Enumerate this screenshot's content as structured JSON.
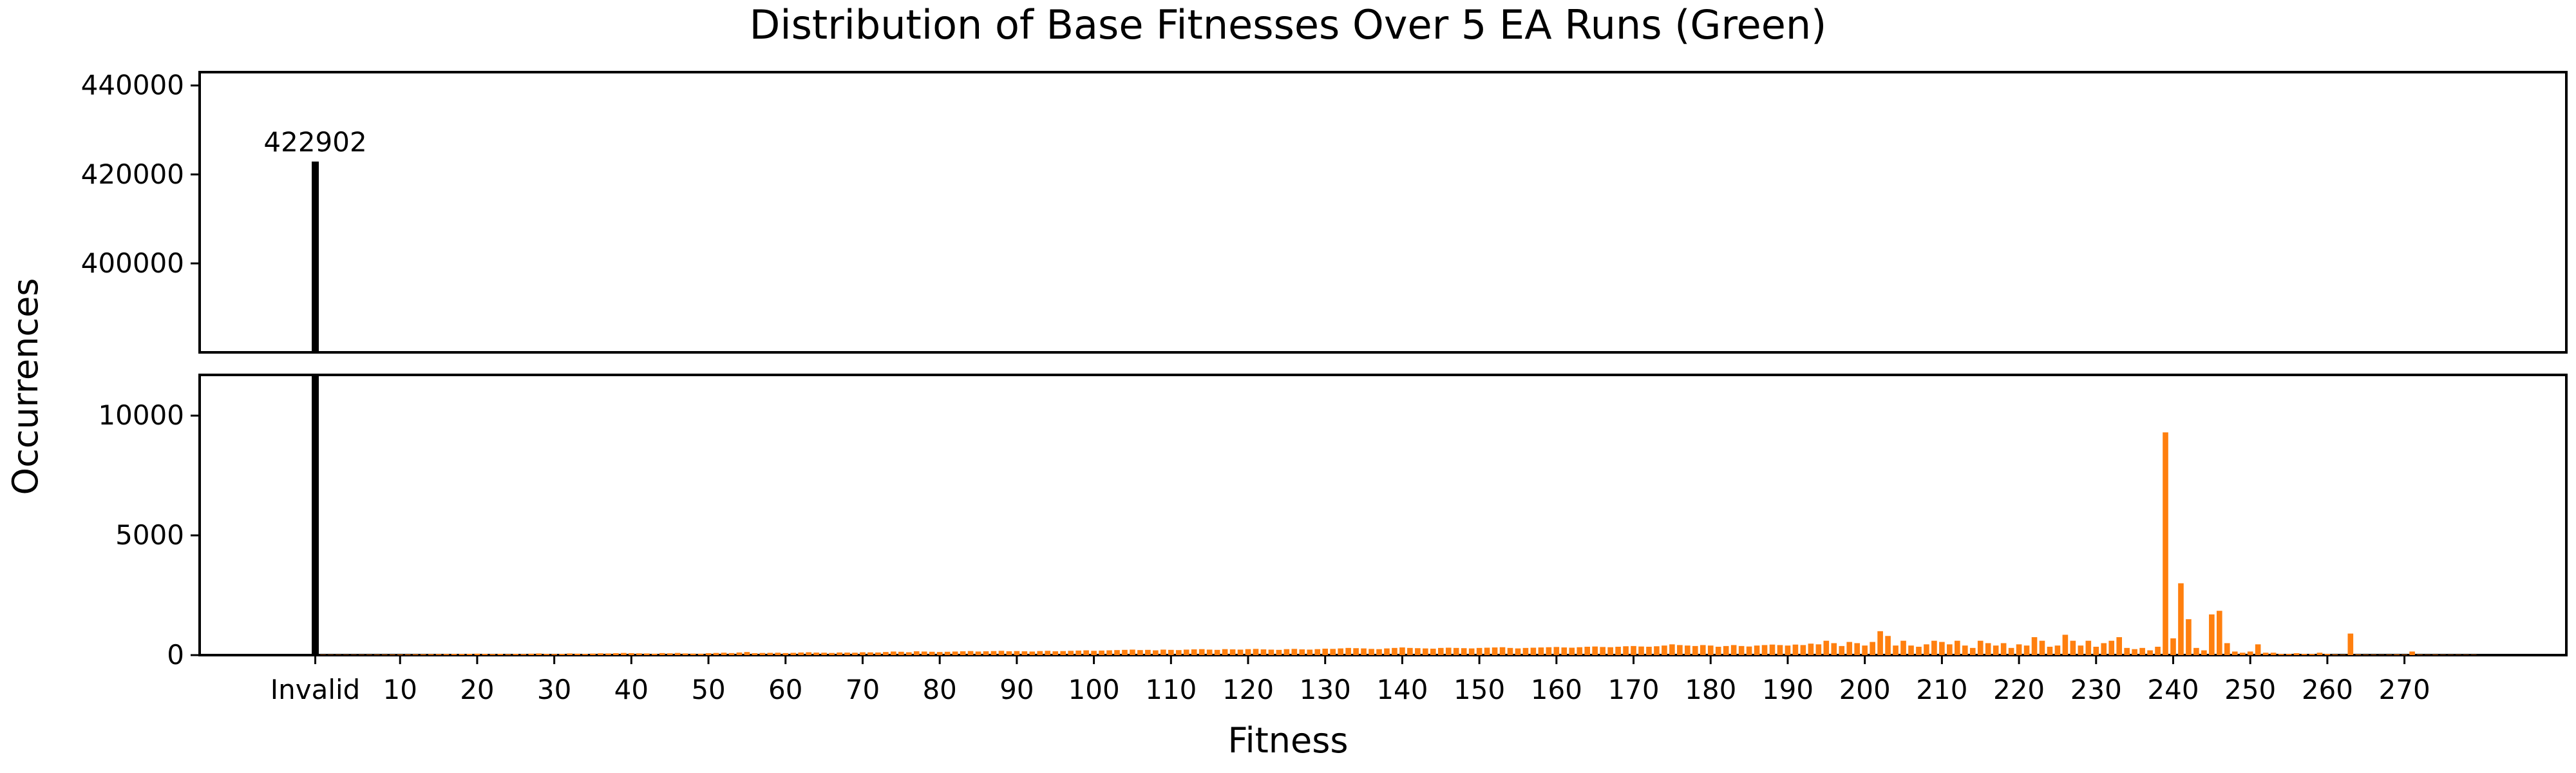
{
  "chart_data": {
    "type": "bar",
    "title": "Distribution of Base Fitnesses Over 5 EA Runs (Green)",
    "xlabel": "Fitness",
    "ylabel": "Occurrences",
    "broken_y_axis": true,
    "top_panel": {
      "ylim": [
        380000,
        443000
      ],
      "yticks": [
        400000,
        420000,
        440000
      ]
    },
    "bottom_panel": {
      "ylim": [
        0,
        11700
      ],
      "yticks": [
        0,
        5000,
        10000
      ]
    },
    "xlim": [
      -15,
      292
    ],
    "x_tick_labels": [
      {
        "x": 0,
        "label": "Invalid"
      },
      {
        "x": 11,
        "label": "10"
      },
      {
        "x": 21,
        "label": "20"
      },
      {
        "x": 31,
        "label": "30"
      },
      {
        "x": 41,
        "label": "40"
      },
      {
        "x": 51,
        "label": "50"
      },
      {
        "x": 61,
        "label": "60"
      },
      {
        "x": 71,
        "label": "70"
      },
      {
        "x": 81,
        "label": "80"
      },
      {
        "x": 91,
        "label": "90"
      },
      {
        "x": 101,
        "label": "100"
      },
      {
        "x": 111,
        "label": "110"
      },
      {
        "x": 121,
        "label": "120"
      },
      {
        "x": 131,
        "label": "130"
      },
      {
        "x": 141,
        "label": "140"
      },
      {
        "x": 151,
        "label": "150"
      },
      {
        "x": 161,
        "label": "160"
      },
      {
        "x": 171,
        "label": "170"
      },
      {
        "x": 181,
        "label": "180"
      },
      {
        "x": 191,
        "label": "190"
      },
      {
        "x": 201,
        "label": "200"
      },
      {
        "x": 211,
        "label": "210"
      },
      {
        "x": 221,
        "label": "220"
      },
      {
        "x": 231,
        "label": "230"
      },
      {
        "x": 241,
        "label": "240"
      },
      {
        "x": 251,
        "label": "250"
      },
      {
        "x": 261,
        "label": "260"
      },
      {
        "x": 271,
        "label": "270"
      }
    ],
    "invalid_bar": {
      "label": "Invalid",
      "value": 422902,
      "data_label": "422902",
      "color": "#000000"
    },
    "series": [
      {
        "color": "#ff7f0e",
        "note_fitness_range": [
          1,
          280
        ],
        "values": [
          10,
          10,
          10,
          12,
          14,
          16,
          18,
          20,
          22,
          25,
          28,
          30,
          33,
          36,
          40,
          42,
          45,
          48,
          50,
          55,
          60,
          50,
          45,
          55,
          40,
          50,
          45,
          60,
          70,
          50,
          45,
          55,
          70,
          60,
          50,
          65,
          75,
          70,
          80,
          90,
          80,
          75,
          70,
          60,
          85,
          75,
          90,
          70,
          65,
          60,
          80,
          90,
          100,
          85,
          110,
          130,
          80,
          90,
          95,
          100,
          85,
          95,
          110,
          120,
          105,
          100,
          90,
          110,
          105,
          100,
          120,
          115,
          110,
          130,
          150,
          140,
          120,
          160,
          150,
          140,
          130,
          140,
          150,
          160,
          170,
          150,
          160,
          170,
          180,
          160,
          170,
          160,
          150,
          170,
          180,
          160,
          170,
          180,
          190,
          200,
          180,
          190,
          200,
          210,
          220,
          230,
          210,
          220,
          200,
          230,
          220,
          210,
          230,
          240,
          250,
          230,
          220,
          250,
          240,
          230,
          250,
          260,
          240,
          230,
          220,
          250,
          260,
          240,
          230,
          250,
          270,
          260,
          280,
          300,
          290,
          280,
          260,
          250,
          280,
          300,
          320,
          300,
          290,
          280,
          270,
          300,
          310,
          300,
          290,
          280,
          300,
          310,
          320,
          330,
          300,
          280,
          300,
          310,
          320,
          330,
          340,
          320,
          310,
          330,
          350,
          360,
          340,
          330,
          350,
          370,
          380,
          360,
          350,
          370,
          400,
          450,
          420,
          400,
          380,
          420,
          400,
          350,
          380,
          420,
          380,
          360,
          400,
          420,
          440,
          420,
          400,
          440,
          420,
          480,
          450,
          600,
          500,
          380,
          550,
          500,
          400,
          550,
          1000,
          800,
          400,
          600,
          400,
          350,
          450,
          600,
          550,
          450,
          600,
          400,
          300,
          600,
          500,
          400,
          500,
          300,
          450,
          400,
          750,
          600,
          350,
          400,
          850,
          600,
          400,
          600,
          350,
          500,
          600,
          750,
          300,
          250,
          300,
          200,
          350,
          9300,
          700,
          3000,
          1500,
          300,
          200,
          1700,
          1850,
          500,
          150,
          100,
          150,
          450,
          100,
          100,
          50,
          50,
          80,
          50,
          50,
          100,
          50,
          30,
          20,
          900,
          30,
          20,
          20,
          10,
          20,
          30,
          20,
          150,
          20,
          10,
          20,
          10,
          5,
          5,
          5,
          5
        ]
      }
    ],
    "grid": false,
    "legend": "none"
  }
}
